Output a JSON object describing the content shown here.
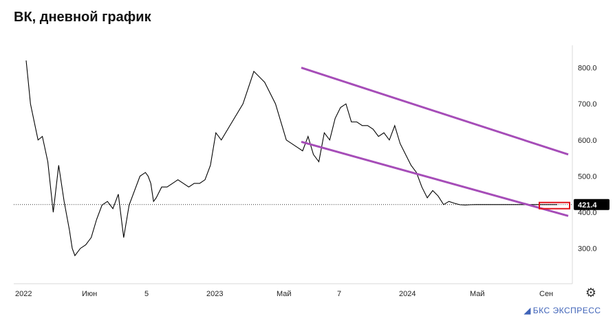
{
  "header": {
    "title": "ВК, дневной график"
  },
  "brand": {
    "text": "БКС ЭКСПРЕСС",
    "mark_icon": "bks-logo-icon"
  },
  "toolbar": {
    "settings_icon": "gear-icon"
  },
  "colors": {
    "price_line": "#000000",
    "channel": "#a64db8",
    "marker": "#e0141c",
    "last_price_bg": "#000000",
    "axis_text": "#222222",
    "brand": "#3f63b8"
  },
  "chart_data": {
    "type": "line",
    "title": "ВК, дневной график",
    "xlabel": "",
    "ylabel": "",
    "x_tick_labels": [
      "2022",
      "Июн",
      "5",
      "2023",
      "Май",
      "7",
      "2024",
      "Май",
      "Сен"
    ],
    "y_ticks": [
      300,
      400,
      500,
      600,
      700,
      800
    ],
    "y_tick_labels": [
      "300.0",
      "400.0",
      "500.0",
      "600.0",
      "700.0",
      "800.0"
    ],
    "ylim": [
      208,
      862
    ],
    "last_price": 421.4,
    "last_price_label": "421.4",
    "grid": false,
    "series": [
      {
        "x": [
          0,
          0.004,
          0.008,
          0.015,
          0.022,
          0.03,
          0.04,
          0.05,
          0.06,
          0.07,
          0.075,
          0.08,
          0.085,
          0.09,
          0.1,
          0.11,
          0.12,
          0.13,
          0.14,
          0.15,
          0.16,
          0.17,
          0.18,
          0.19,
          0.2,
          0.21,
          0.22,
          0.225,
          0.23,
          0.235,
          0.24,
          0.25,
          0.26,
          0.27,
          0.28,
          0.29,
          0.3,
          0.31,
          0.32,
          0.33,
          0.34,
          0.35,
          0.36,
          0.38,
          0.4,
          0.42,
          0.44,
          0.46,
          0.48,
          0.5,
          0.51,
          0.52,
          0.53,
          0.54,
          0.55,
          0.56,
          0.57,
          0.58,
          0.59,
          0.6,
          0.61,
          0.62,
          0.63,
          0.64,
          0.65,
          0.66,
          0.67,
          0.68,
          0.69,
          0.7,
          0.71,
          0.72,
          0.73,
          0.74,
          0.75,
          0.76,
          0.77,
          0.78,
          0.79,
          0.8,
          0.81,
          0.82,
          0.83,
          0.84,
          0.85,
          0.86,
          0.87,
          0.88,
          0.89,
          0.9,
          0.91,
          0.92,
          0.93,
          0.94,
          0.95,
          0.96,
          0.97,
          0.98
        ],
        "values": [
          820,
          760,
          700,
          650,
          600,
          610,
          540,
          400,
          530,
          430,
          390,
          350,
          300,
          280,
          300,
          310,
          330,
          380,
          420,
          430,
          410,
          450,
          330,
          420,
          460,
          500,
          510,
          500,
          480,
          430,
          440,
          470,
          470,
          480,
          490,
          480,
          470,
          480,
          480,
          490,
          530,
          620,
          600,
          650,
          700,
          790,
          760,
          700,
          600,
          580,
          570,
          610,
          560,
          540,
          620,
          600,
          660,
          690,
          700,
          650,
          650,
          640,
          640,
          630,
          610,
          620,
          600,
          640,
          590,
          560,
          530,
          510,
          470,
          440,
          460,
          445,
          421.4,
          430,
          425,
          421,
          420,
          421,
          421.4,
          421.4,
          421.4,
          421.4,
          421.4,
          421.4,
          421.4,
          421.4,
          421.4,
          421.4,
          421.4,
          421.4,
          421.4,
          421.4,
          421.4,
          421.4
        ]
      }
    ],
    "annotations": [
      {
        "type": "trendline",
        "name": "upper-channel-line",
        "x": [
          0.0,
          1.0
        ],
        "y": [
          800,
          560
        ]
      },
      {
        "type": "trendline",
        "name": "lower-channel-line",
        "x": [
          0.0,
          1.0
        ],
        "y": [
          595,
          390
        ]
      }
    ]
  }
}
